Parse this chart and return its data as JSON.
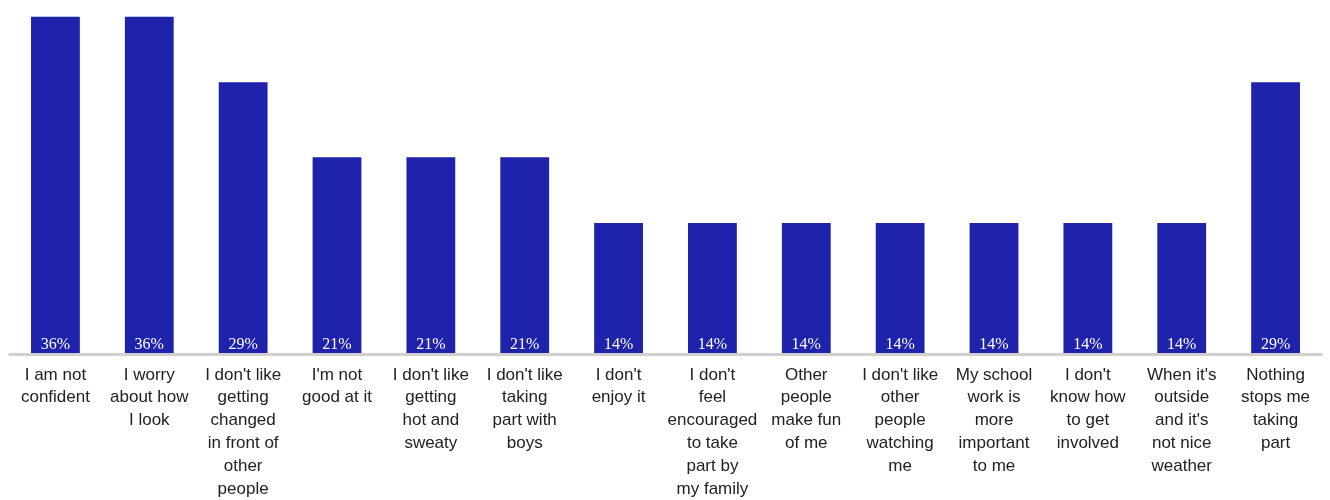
{
  "chart_data": {
    "type": "bar",
    "categories": [
      "I am not\nconfident",
      "I worry\nabout how\nI look",
      "I don't like\ngetting\nchanged\nin front of\nother\npeople",
      "I'm not\ngood at it",
      "I don't like\ngetting\nhot and\nsweaty",
      "I don't like\ntaking\npart with\nboys",
      "I don't\nenjoy it",
      "I don't\nfeel\nencouraged\nto take\npart by\nmy family",
      "Other\npeople\nmake fun\nof me",
      "I don't like\nother\npeople\nwatching\nme",
      "My school\nwork is\nmore\nimportant\nto me",
      "I don't\nknow how\nto get\ninvolved",
      "When it's\noutside\nand it's\nnot nice\nweather",
      "Nothing\nstops me\ntaking\npart"
    ],
    "values": [
      36,
      36,
      29,
      21,
      21,
      21,
      14,
      14,
      14,
      14,
      14,
      14,
      14,
      29
    ],
    "value_labels": [
      "36%",
      "36%",
      "29%",
      "21%",
      "21%",
      "21%",
      "14%",
      "14%",
      "14%",
      "14%",
      "14%",
      "14%",
      "14%",
      "29%"
    ],
    "color": "#1f22ab"
  }
}
